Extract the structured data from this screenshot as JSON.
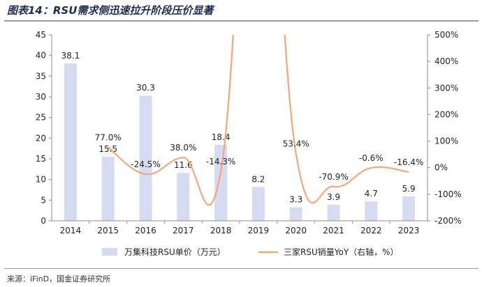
{
  "header": {
    "title": "图表14：RSU需求侧迅速拉升阶段压价显著"
  },
  "footer": {
    "source": "来源：iFinD，国金证券研究所"
  },
  "chart_data": {
    "type": "bar",
    "categories": [
      "2014",
      "2015",
      "2016",
      "2017",
      "2018",
      "2019",
      "2020",
      "2021",
      "2022",
      "2023"
    ],
    "series": [
      {
        "name": "万集科技RSU单价（万元）",
        "type": "bar",
        "axis": "left",
        "values": [
          38.1,
          15.5,
          30.3,
          11.6,
          18.4,
          8.2,
          3.3,
          3.9,
          4.7,
          5.9
        ],
        "labels": [
          "38.1",
          "15.5",
          "30.3",
          "11.6",
          "18.4",
          "8.2",
          "3.3",
          "3.9",
          "4.7",
          "5.9"
        ],
        "color": "#d5dcf2"
      },
      {
        "name": "三家RSU销量YoY（右轴，%）",
        "type": "line",
        "axis": "right",
        "values": [
          null,
          77.0,
          -24.5,
          38.0,
          -14.3,
          null,
          53.4,
          -70.9,
          -0.6,
          -16.4
        ],
        "labels": [
          "",
          "77.0%",
          "-24.5%",
          "38.0%",
          "-14.3%",
          "",
          "53.4%",
          "-70.9%",
          "-0.6%",
          "-16.4%"
        ],
        "color": "#f5a679",
        "note_visible": "2019 value exceeds the right-axis maximum (line runs off the top of the plot)"
      }
    ],
    "y_left": {
      "min": 0,
      "max": 45,
      "ticks": [
        "0",
        "5",
        "10",
        "15",
        "20",
        "25",
        "30",
        "35",
        "40",
        "45"
      ]
    },
    "y_right": {
      "min": -200,
      "max": 500,
      "ticks": [
        "-200%",
        "-100%",
        "0%",
        "100%",
        "200%",
        "300%",
        "400%",
        "500%"
      ]
    },
    "grid": false,
    "legend_position": "bottom"
  }
}
